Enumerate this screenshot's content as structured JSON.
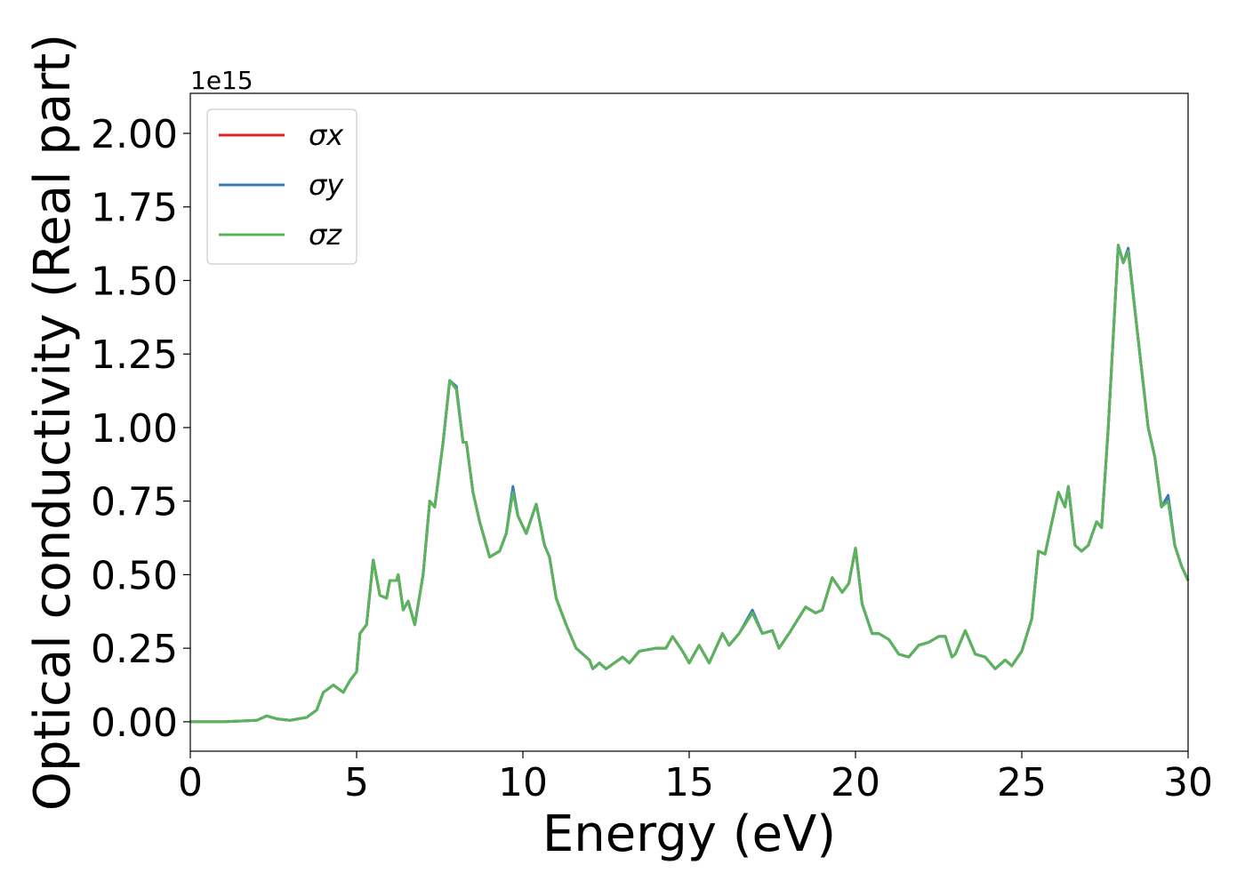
{
  "chart_data": {
    "type": "line",
    "xlabel": "Energy (eV)",
    "ylabel": "Optical conductivity (Real part)",
    "y_offset_label": "1e15",
    "xlim": [
      0,
      30
    ],
    "ylim": [
      -0.1,
      2.136
    ],
    "xticks": [
      0,
      5,
      10,
      15,
      20,
      25,
      30
    ],
    "yticks": [
      {
        "value": 0,
        "label": "0.00"
      },
      0.25,
      {
        "value": 0.5,
        "label": "0.50"
      },
      0.75,
      {
        "value": 1,
        "label": "1.00"
      },
      1.25,
      {
        "value": 1.5,
        "label": "1.50"
      },
      1.75,
      {
        "value": 2,
        "label": "2.00"
      }
    ],
    "grid": false,
    "legend": "upper left",
    "x": [
      0,
      1,
      2,
      2.3,
      2.6,
      3,
      3.5,
      3.8,
      4,
      4.3,
      4.6,
      4.8,
      5,
      5.1,
      5.3,
      5.5,
      5.7,
      5.9,
      6,
      6.2,
      6.25,
      6.4,
      6.55,
      6.75,
      7,
      7.2,
      7.35,
      7.6,
      7.8,
      8,
      8.2,
      8.3,
      8.5,
      8.7,
      9,
      9.3,
      9.5,
      9.7,
      9.85,
      10.1,
      10.4,
      10.65,
      10.8,
      11,
      11.3,
      11.6,
      12,
      12.1,
      12.3,
      12.5,
      13,
      13.2,
      13.5,
      14,
      14.3,
      14.5,
      14.8,
      15,
      15.3,
      15.6,
      16,
      16.2,
      16.5,
      16.9,
      17.2,
      17.5,
      17.7,
      18,
      18.5,
      18.8,
      19,
      19.3,
      19.6,
      19.8,
      20,
      20.2,
      20.5,
      20.7,
      21,
      21.3,
      21.6,
      21.9,
      22.2,
      22.5,
      22.7,
      22.9,
      23,
      23.3,
      23.6,
      23.9,
      24.2,
      24.5,
      24.7,
      25,
      25.3,
      25.5,
      25.7,
      25.85,
      26.1,
      26.3,
      26.4,
      26.6,
      26.8,
      27,
      27.25,
      27.4,
      27.6,
      27.9,
      28.05,
      28.2,
      28.5,
      28.8,
      29,
      29.2,
      29.4,
      29.6,
      29.8,
      30
    ],
    "series": [
      {
        "name": "σx",
        "color": "#d62728",
        "values": [
          0,
          0,
          0.005,
          0.02,
          0.01,
          0.005,
          0.015,
          0.04,
          0.1,
          0.125,
          0.1,
          0.14,
          0.17,
          0.3,
          0.33,
          0.55,
          0.43,
          0.42,
          0.48,
          0.48,
          0.5,
          0.38,
          0.41,
          0.33,
          0.5,
          0.75,
          0.73,
          0.95,
          1.16,
          1.13,
          0.95,
          0.95,
          0.78,
          0.68,
          0.56,
          0.58,
          0.64,
          0.79,
          0.7,
          0.64,
          0.74,
          0.6,
          0.56,
          0.42,
          0.33,
          0.25,
          0.21,
          0.18,
          0.2,
          0.18,
          0.22,
          0.2,
          0.24,
          0.25,
          0.25,
          0.29,
          0.24,
          0.2,
          0.26,
          0.2,
          0.3,
          0.26,
          0.3,
          0.37,
          0.3,
          0.31,
          0.25,
          0.3,
          0.39,
          0.37,
          0.38,
          0.49,
          0.44,
          0.47,
          0.59,
          0.4,
          0.3,
          0.3,
          0.28,
          0.23,
          0.22,
          0.26,
          0.27,
          0.29,
          0.29,
          0.22,
          0.23,
          0.31,
          0.23,
          0.22,
          0.18,
          0.21,
          0.19,
          0.24,
          0.35,
          0.58,
          0.57,
          0.65,
          0.78,
          0.73,
          0.8,
          0.6,
          0.58,
          0.6,
          0.68,
          0.66,
          1.0,
          1.62,
          1.56,
          1.6,
          1.3,
          1.0,
          0.9,
          0.73,
          0.76,
          0.6,
          0.53,
          0.48
        ]
      },
      {
        "name": "σy",
        "color": "#3a7bbf",
        "values": [
          0,
          0,
          0.005,
          0.02,
          0.01,
          0.005,
          0.015,
          0.04,
          0.1,
          0.125,
          0.1,
          0.14,
          0.17,
          0.3,
          0.33,
          0.55,
          0.43,
          0.42,
          0.48,
          0.48,
          0.5,
          0.38,
          0.41,
          0.33,
          0.5,
          0.75,
          0.73,
          0.95,
          1.16,
          1.14,
          0.95,
          0.95,
          0.78,
          0.68,
          0.56,
          0.58,
          0.64,
          0.8,
          0.7,
          0.64,
          0.74,
          0.6,
          0.56,
          0.42,
          0.33,
          0.25,
          0.21,
          0.18,
          0.2,
          0.18,
          0.22,
          0.2,
          0.24,
          0.25,
          0.25,
          0.29,
          0.24,
          0.2,
          0.26,
          0.2,
          0.3,
          0.26,
          0.3,
          0.38,
          0.3,
          0.31,
          0.25,
          0.3,
          0.39,
          0.37,
          0.38,
          0.49,
          0.44,
          0.47,
          0.59,
          0.4,
          0.3,
          0.3,
          0.28,
          0.23,
          0.22,
          0.26,
          0.27,
          0.29,
          0.29,
          0.22,
          0.23,
          0.31,
          0.23,
          0.22,
          0.18,
          0.21,
          0.19,
          0.24,
          0.35,
          0.58,
          0.57,
          0.65,
          0.78,
          0.73,
          0.8,
          0.6,
          0.58,
          0.6,
          0.68,
          0.66,
          1.0,
          1.62,
          1.56,
          1.61,
          1.3,
          1.0,
          0.9,
          0.73,
          0.77,
          0.6,
          0.53,
          0.48
        ]
      },
      {
        "name": "σz",
        "color": "#5ab55a",
        "values": [
          0,
          0,
          0.005,
          0.02,
          0.01,
          0.005,
          0.015,
          0.04,
          0.1,
          0.125,
          0.1,
          0.14,
          0.17,
          0.3,
          0.33,
          0.55,
          0.43,
          0.42,
          0.48,
          0.48,
          0.5,
          0.38,
          0.41,
          0.33,
          0.5,
          0.75,
          0.73,
          0.95,
          1.16,
          1.13,
          0.95,
          0.95,
          0.78,
          0.68,
          0.56,
          0.58,
          0.64,
          0.78,
          0.7,
          0.64,
          0.74,
          0.6,
          0.56,
          0.42,
          0.33,
          0.25,
          0.21,
          0.18,
          0.2,
          0.18,
          0.22,
          0.2,
          0.24,
          0.25,
          0.25,
          0.29,
          0.24,
          0.2,
          0.26,
          0.2,
          0.3,
          0.26,
          0.3,
          0.37,
          0.3,
          0.31,
          0.25,
          0.3,
          0.39,
          0.37,
          0.38,
          0.49,
          0.44,
          0.47,
          0.59,
          0.4,
          0.3,
          0.3,
          0.28,
          0.23,
          0.22,
          0.26,
          0.27,
          0.29,
          0.29,
          0.22,
          0.23,
          0.31,
          0.23,
          0.22,
          0.18,
          0.21,
          0.19,
          0.24,
          0.35,
          0.58,
          0.57,
          0.65,
          0.78,
          0.73,
          0.8,
          0.6,
          0.58,
          0.6,
          0.68,
          0.66,
          1.0,
          1.62,
          1.56,
          1.6,
          1.3,
          1.0,
          0.9,
          0.73,
          0.75,
          0.6,
          0.53,
          0.48
        ]
      }
    ]
  }
}
